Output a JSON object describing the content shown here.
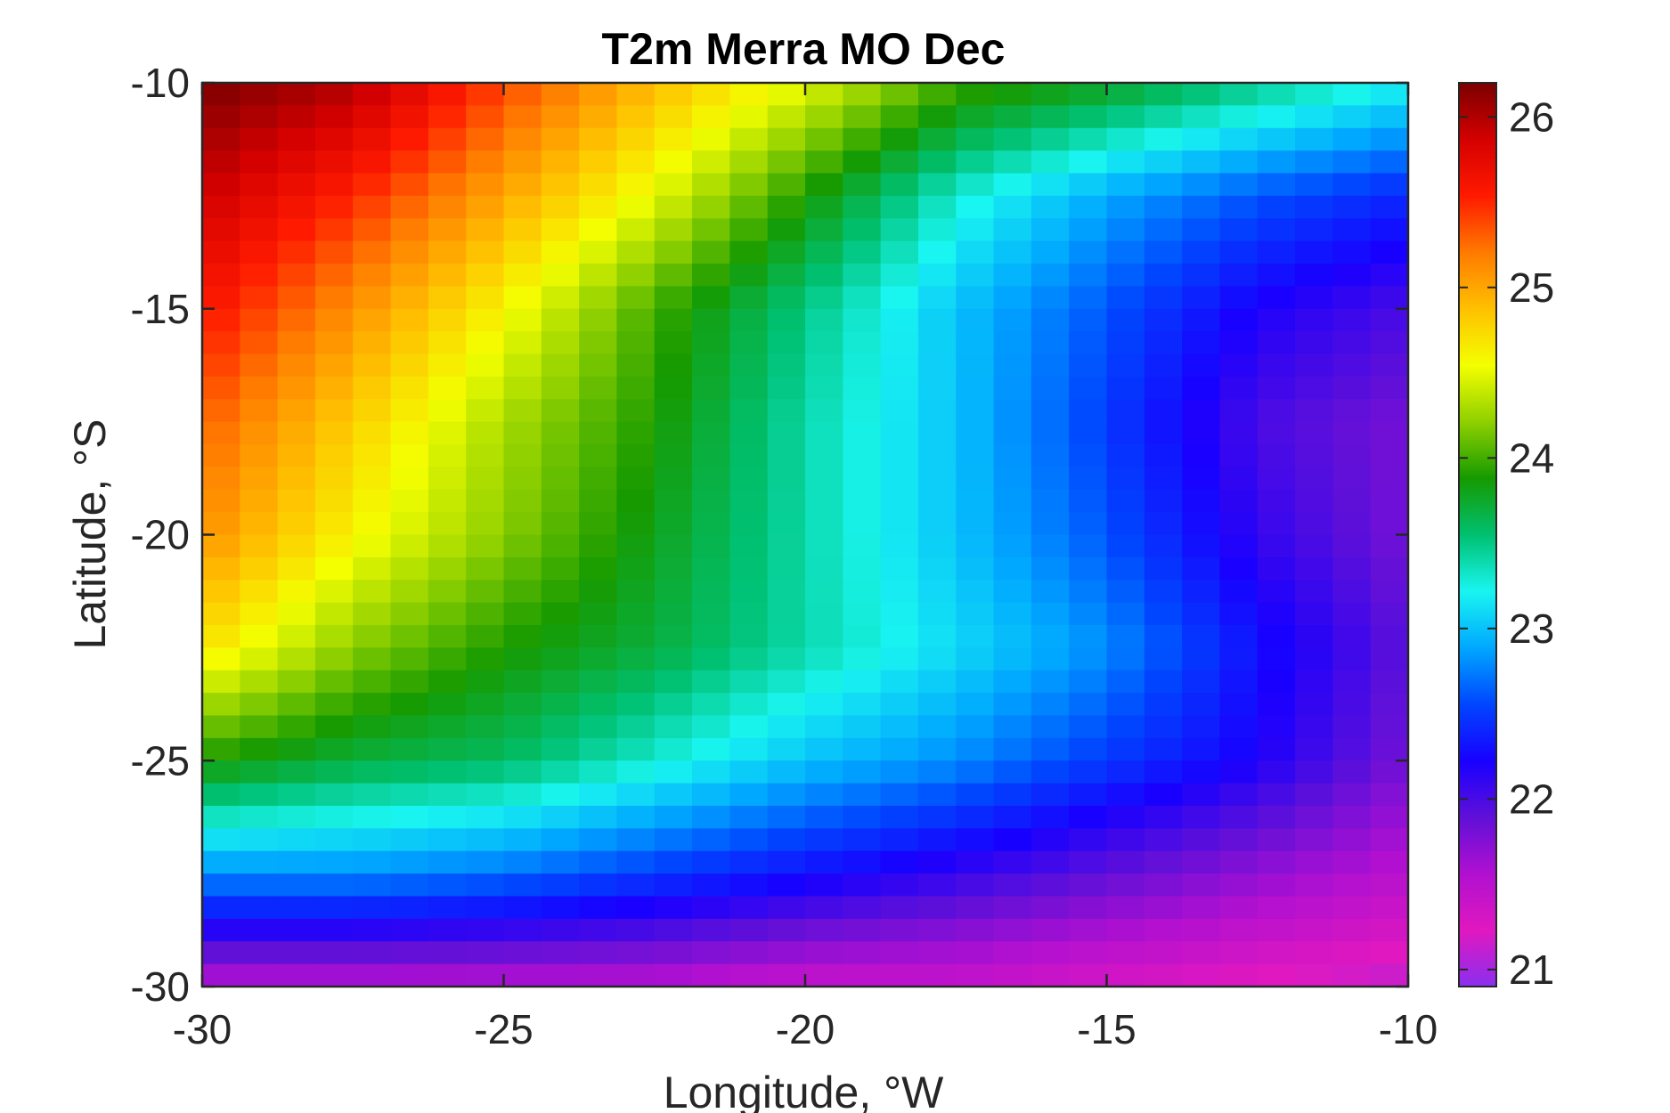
{
  "chart_data": {
    "type": "heatmap",
    "title": "T2m Merra MO Dec",
    "xlabel": "Longitude, °W",
    "ylabel": "Latitude, °S",
    "xlim": [
      -30,
      -10
    ],
    "ylim": [
      -30,
      -10
    ],
    "xticks": [
      -30,
      -25,
      -20,
      -15,
      -10
    ],
    "yticks": [
      -10,
      -15,
      -20,
      -25,
      -30
    ],
    "colorbar": {
      "range": [
        20.9,
        26.2
      ],
      "ticks": [
        26,
        25,
        24,
        23,
        22,
        21
      ],
      "colormap": [
        "#7b0000",
        "#d40000",
        "#ff1a00",
        "#ff7a00",
        "#ffc000",
        "#f4ff00",
        "#8fd000",
        "#169a00",
        "#00c070",
        "#19f5f0",
        "#00a8ff",
        "#0046ff",
        "#1800ff",
        "#6010d8",
        "#b010d0",
        "#e018c0",
        "#8a2ff0"
      ]
    },
    "grid": false,
    "value_grid": {
      "description": "Surface air temperature (°C) on a grid from -30 to -10 longitude and latitude; values sampled at grid-cell centers",
      "x": [
        -30,
        -27.5,
        -25,
        -22.5,
        -20,
        -17.5,
        -15,
        -12.5,
        -10
      ],
      "y": [
        -10,
        -12.5,
        -15,
        -17.5,
        -20,
        -22.5,
        -25,
        -27.5,
        -30
      ],
      "z": [
        [
          26.2,
          26.0,
          25.4,
          24.9,
          24.5,
          24.0,
          23.8,
          23.5,
          23.2
        ],
        [
          25.9,
          25.5,
          25.0,
          24.5,
          23.9,
          23.3,
          22.9,
          22.6,
          22.4
        ],
        [
          25.6,
          25.1,
          24.6,
          24.0,
          23.5,
          23.0,
          22.6,
          22.2,
          22.0
        ],
        [
          25.3,
          24.8,
          24.3,
          23.9,
          23.4,
          23.0,
          22.5,
          22.0,
          21.8
        ],
        [
          25.1,
          24.6,
          24.2,
          23.8,
          23.4,
          23.0,
          22.6,
          22.1,
          21.8
        ],
        [
          24.7,
          24.2,
          23.9,
          23.7,
          23.4,
          23.1,
          22.8,
          22.3,
          21.9
        ],
        [
          23.9,
          23.7,
          23.6,
          23.3,
          23.0,
          22.8,
          22.5,
          22.2,
          21.8
        ],
        [
          22.8,
          22.8,
          22.7,
          22.5,
          22.3,
          22.1,
          21.9,
          21.7,
          21.5
        ],
        [
          21.5,
          21.5,
          21.5,
          21.5,
          21.4,
          21.4,
          21.3,
          21.2,
          21.1
        ]
      ]
    }
  }
}
